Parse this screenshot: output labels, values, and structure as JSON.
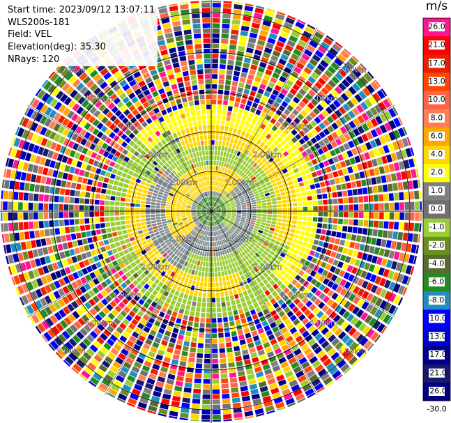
{
  "info": {
    "start_time": "Start time: 2023/09/12 13:07:11",
    "instrument": "WLS200s-181",
    "field": "Field: VEL",
    "elevation": "Elevation(deg): 35.30",
    "nrays": "NRays: 120"
  },
  "colorbar": {
    "unit": "m/s",
    "labels": [
      "26.0",
      "21.0",
      "17.0",
      "13.0",
      "10.0",
      "8.0",
      "6.0",
      "4.0",
      "2.0",
      "1.0",
      "0.0",
      "-1.0",
      "-2.0",
      "-4.0",
      "-6.0",
      "-8.0",
      "-10.0",
      "-13.0",
      "-17.0",
      "-21.0",
      "-26.0",
      "-30.0"
    ],
    "colors": [
      "#ff1493",
      "#ff0000",
      "#e82000",
      "#ff4500",
      "#ff6347",
      "#ff7f50",
      "#ffa500",
      "#ffd700",
      "#ffff00",
      "#808080",
      "#707070",
      "#9acd32",
      "#6b8e23",
      "#556b2f",
      "#228b22",
      "#1e8fbf",
      "#0000ff",
      "#0000cd",
      "#00008b",
      "#191970",
      "#000080"
    ]
  },
  "chart_data": {
    "type": "ppi",
    "field": "VEL",
    "units": "m/s",
    "elevation_deg": 35.3,
    "n_rays": 120,
    "range_rings_km": [
      1.0,
      2.0,
      3.0,
      4.0,
      5.0
    ],
    "range_ring_labels": [
      "1.00km",
      "2.00km",
      "3.00km",
      "4.00km",
      "5.00km"
    ],
    "max_range_km": 5.3,
    "radial_spokes_deg": [
      0,
      30,
      60,
      90,
      120,
      150,
      180,
      210,
      240,
      270,
      300,
      330
    ],
    "color_scale_m_s": [
      26.0,
      21.0,
      17.0,
      13.0,
      10.0,
      8.0,
      6.0,
      4.0,
      2.0,
      1.0,
      0.0,
      -1.0,
      -2.0,
      -4.0,
      -6.0,
      -8.0,
      -10.0,
      -13.0,
      -17.0,
      -21.0,
      -26.0,
      -30.0
    ],
    "pattern": "Near field: alternating bands of approximately +4 m/s (yellow, north-east and south-west) and -2 m/s (green, south-east and north-west); beyond about 2.5 km the range gates are noise spanning the full scale."
  }
}
